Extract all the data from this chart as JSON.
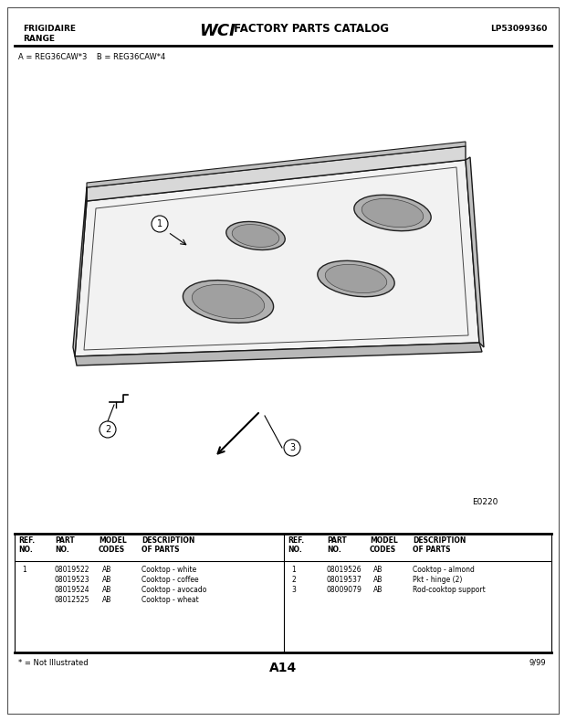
{
  "bg_color": "#ffffff",
  "title_left_1": "FRIGIDAIRE",
  "title_left_2": "RANGE",
  "title_right": "LP53099360",
  "model_codes": "A = REG36CAW*3    B = REG36CAW*4",
  "diagram_label": "E0220",
  "page_label": "A14",
  "date_label": "9/99",
  "footnote": "* = Not Illustrated",
  "col_labels": [
    "REF.\nNO.",
    "PART\nNO.",
    "MODEL\nCODES",
    "DESCRIPTION\nOF PARTS"
  ],
  "table_data_left": [
    [
      "1",
      "08019522",
      "AB",
      "Cooktop - white"
    ],
    [
      "",
      "08019523",
      "AB",
      "Cooktop - coffee"
    ],
    [
      "",
      "08019524",
      "AB",
      "Cooktop - avocado"
    ],
    [
      "",
      "08012525",
      "AB",
      "Cooktop - wheat"
    ]
  ],
  "table_data_right": [
    [
      "1",
      "08019526",
      "AB",
      "Cooktop - almond"
    ],
    [
      "2",
      "08019537",
      "AB",
      "Pkt - hinge (2)"
    ],
    [
      "3",
      "08009079",
      "AB",
      "Rod-cooktop support"
    ]
  ]
}
